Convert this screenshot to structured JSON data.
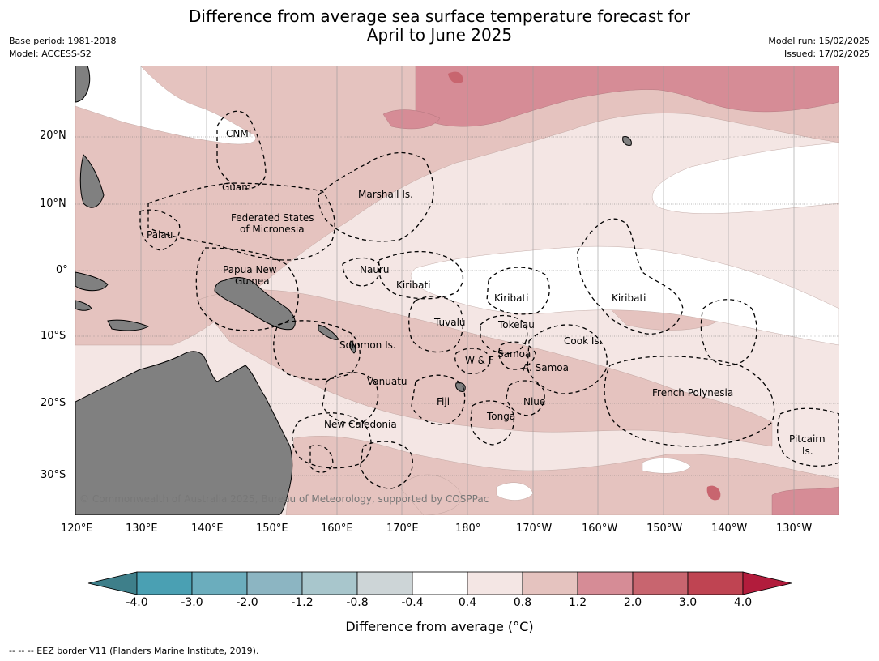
{
  "title": {
    "line1": "Difference from average sea surface temperature forecast for",
    "line2": "April to June 2025"
  },
  "meta": {
    "base_period": "Base period: 1981-2018",
    "model": "Model: ACCESS-S2",
    "model_run": "Model run: 15/02/2025",
    "issued": "Issued: 17/02/2025"
  },
  "map": {
    "copyright": "© Commonwealth of Australia 2025, Bureau of Meteorology, supported by COSPPac",
    "land_color": "#808080",
    "lat_labels": [
      "20°N",
      "10°N",
      "0°",
      "10°S",
      "20°S",
      "30°S"
    ],
    "lon_labels": [
      "120°E",
      "130°E",
      "140°E",
      "150°E",
      "160°E",
      "170°E",
      "180°",
      "170°W",
      "160°W",
      "150°W",
      "140°W",
      "130°W"
    ],
    "places": {
      "cnmi": "CNMI",
      "guam": "Guam",
      "marshall": "Marshall Is.",
      "fsm_line1": "Federated States",
      "fsm_line2": "of Micronesia",
      "palau": "Palau",
      "nauru": "Nauru",
      "png_line1": "Papua New",
      "png_line2": "Guinea",
      "kiribati_west": "Kiribati",
      "kiribati_central": "Kiribati",
      "kiribati_east": "Kiribati",
      "tuvalu": "Tuvalu",
      "tokelau": "Tokelau",
      "cook": "Cook Is.",
      "solomon": "Solomon Is.",
      "wallis": "W & F",
      "samoa": "Samoa",
      "american_samoa": "A. Samoa",
      "vanuatu": "Vanuatu",
      "fiji": "Fiji",
      "niue": "Niue",
      "tonga": "Tonga",
      "french_polynesia": "French Polynesia",
      "new_caledonia": "New Caledonia",
      "pitcairn_line1": "Pitcairn",
      "pitcairn_line2": "Is."
    }
  },
  "colorbar": {
    "title": "Difference from average (°C)",
    "tick_labels": [
      "-4.0",
      "-3.0",
      "-2.0",
      "-1.2",
      "-0.8",
      "-0.4",
      "0.4",
      "0.8",
      "1.2",
      "2.0",
      "3.0",
      "4.0"
    ],
    "colors": [
      "#3e7f8a",
      "#4aa0b3",
      "#6badbd",
      "#8cb5c2",
      "#a8c6cc",
      "#cdd5d7",
      "#ffffff",
      "#f4e6e4",
      "#e5c3bf",
      "#d68c96",
      "#c8656f",
      "#bf4452",
      "#b21c3c"
    ]
  },
  "footer": "--  --  -- EEZ border V11 (Flanders Marine Institute, 2019)."
}
